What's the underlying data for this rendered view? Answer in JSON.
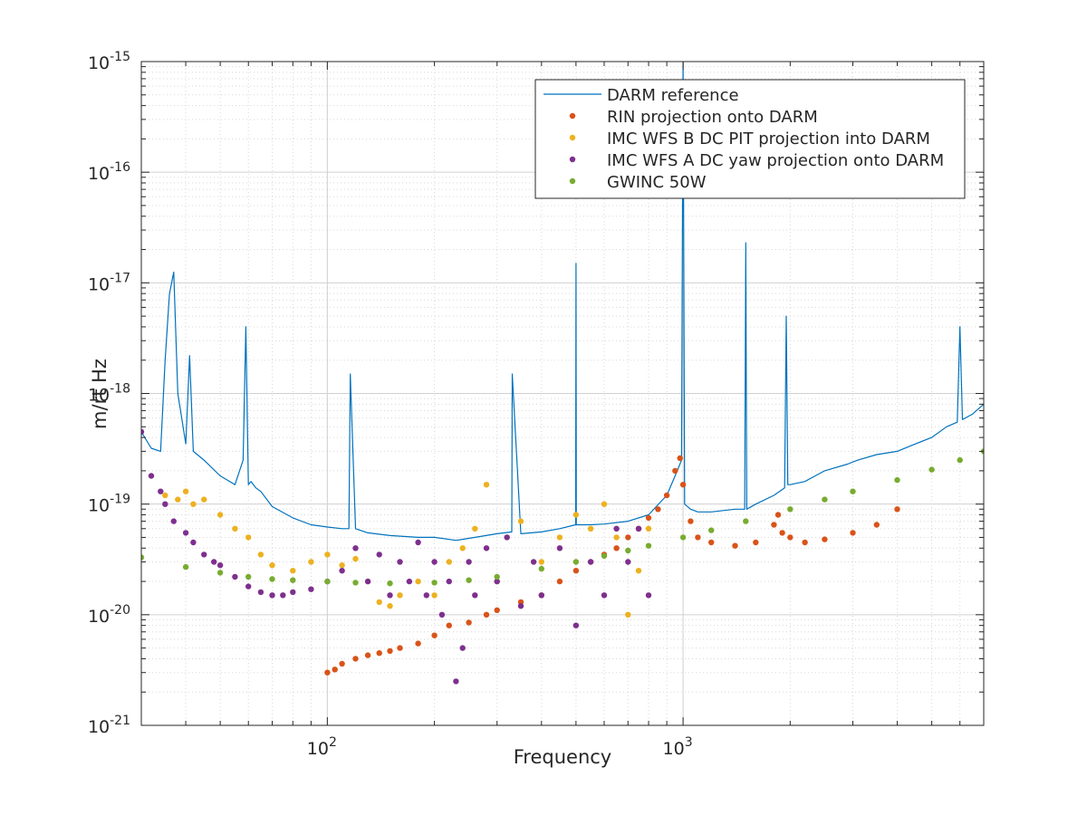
{
  "chart_data": {
    "type": "line",
    "title": "",
    "xlabel": "Frequency",
    "ylabel": "m/rt Hz",
    "xscale": "log",
    "yscale": "log",
    "xlim": [
      30,
      7000
    ],
    "ylim": [
      1e-21,
      1e-15
    ],
    "grid": true,
    "minor_grid": true,
    "legend_position": "top-right",
    "x_ticks": [
      {
        "value": 100,
        "base": "10",
        "exp": "2"
      },
      {
        "value": 1000,
        "base": "10",
        "exp": "3"
      }
    ],
    "y_ticks": [
      {
        "value": 1e-21,
        "base": "10",
        "exp": "-21"
      },
      {
        "value": 1e-20,
        "base": "10",
        "exp": "-20"
      },
      {
        "value": 1e-19,
        "base": "10",
        "exp": "-19"
      },
      {
        "value": 1e-18,
        "base": "10",
        "exp": "-18"
      },
      {
        "value": 1e-17,
        "base": "10",
        "exp": "-17"
      },
      {
        "value": 1e-16,
        "base": "10",
        "exp": "-16"
      },
      {
        "value": 1e-15,
        "base": "10",
        "exp": "-15"
      }
    ],
    "series": [
      {
        "name": "DARM reference",
        "style": "line",
        "color": "#0072bd",
        "x": [
          30,
          32,
          34,
          35,
          36,
          37,
          38,
          40,
          41,
          42,
          45,
          50,
          55,
          58,
          59,
          60,
          61,
          63,
          65,
          70,
          80,
          90,
          100,
          110,
          115,
          116,
          120,
          130,
          150,
          180,
          200,
          230,
          250,
          300,
          330,
          331,
          350,
          400,
          450,
          499,
          500,
          501,
          550,
          600,
          700,
          800,
          900,
          950,
          990,
          1000,
          1010,
          1050,
          1100,
          1200,
          1400,
          1490,
          1500,
          1510,
          1600,
          1800,
          1930,
          1950,
          1970,
          2000,
          2200,
          2500,
          2900,
          3000,
          3100,
          3500,
          4000,
          4500,
          5000,
          5500,
          5900,
          6000,
          6100,
          6500,
          7000
        ],
        "y": [
          4.5e-19,
          3.2e-19,
          3e-19,
          2e-18,
          8e-18,
          1.25e-17,
          1e-18,
          3.5e-19,
          2.2e-18,
          3e-19,
          2.5e-19,
          1.8e-19,
          1.5e-19,
          2.5e-19,
          4e-18,
          1.5e-19,
          1.6e-19,
          1.4e-19,
          1.3e-19,
          9.5e-20,
          7.5e-20,
          6.5e-20,
          6.2e-20,
          6e-20,
          6e-20,
          1.5e-18,
          6e-20,
          5.5e-20,
          5.2e-20,
          5e-20,
          5e-20,
          4.7e-20,
          4.9e-20,
          5.4e-20,
          5.6e-20,
          1.5e-18,
          5.4e-20,
          5.6e-20,
          6e-20,
          6.5e-20,
          1.5e-17,
          6.5e-20,
          6.5e-20,
          6.6e-20,
          7e-20,
          8e-20,
          1.2e-19,
          1.8e-19,
          2.5e-19,
          1e-15,
          1e-19,
          9e-20,
          8.5e-20,
          8.5e-20,
          9e-20,
          9e-20,
          2.3e-17,
          9e-20,
          1e-19,
          1.2e-19,
          1.4e-19,
          5e-18,
          1.5e-19,
          1.5e-19,
          1.6e-19,
          2e-19,
          2.3e-19,
          2.4e-19,
          2.5e-19,
          2.8e-19,
          3e-19,
          3.5e-19,
          4e-19,
          5e-19,
          5.5e-19,
          4e-18,
          5.8e-19,
          6.5e-19,
          8e-19
        ]
      },
      {
        "name": "RIN projection onto DARM",
        "style": "points",
        "color": "#d95319",
        "x": [
          100,
          105,
          110,
          120,
          130,
          140,
          150,
          160,
          180,
          200,
          220,
          250,
          280,
          300,
          350,
          400,
          450,
          500,
          550,
          600,
          650,
          700,
          750,
          800,
          850,
          900,
          950,
          980,
          1000,
          1050,
          1100,
          1200,
          1400,
          1600,
          1800,
          1850,
          1900,
          2000,
          2200,
          2500,
          3000,
          3500,
          4000
        ],
        "y": [
          3e-21,
          3.2e-21,
          3.6e-21,
          4e-21,
          4.3e-21,
          4.5e-21,
          4.7e-21,
          5e-21,
          5.5e-21,
          6.5e-21,
          8e-21,
          8.5e-21,
          1e-20,
          1.1e-20,
          1.3e-20,
          1.5e-20,
          2e-20,
          2.5e-20,
          3e-20,
          3.5e-20,
          4e-20,
          5e-20,
          6e-20,
          7.5e-20,
          9e-20,
          1.2e-19,
          2e-19,
          2.6e-19,
          1.5e-19,
          7e-20,
          5e-20,
          4.5e-20,
          4.2e-20,
          4.5e-20,
          6.5e-20,
          8e-20,
          5.5e-20,
          5e-20,
          4.5e-20,
          4.8e-20,
          5.5e-20,
          6.5e-20,
          9e-20
        ]
      },
      {
        "name": "IMC WFS B DC PIT projection into DARM",
        "style": "points",
        "color": "#edb120",
        "x": [
          35,
          38,
          40,
          42,
          45,
          50,
          55,
          60,
          65,
          70,
          80,
          90,
          100,
          110,
          120,
          130,
          140,
          150,
          160,
          180,
          200,
          220,
          240,
          260,
          280,
          300,
          320,
          350,
          400,
          450,
          500,
          550,
          600,
          650,
          700,
          750,
          800
        ],
        "y": [
          1.2e-19,
          1.1e-19,
          1.3e-19,
          1e-19,
          1.1e-19,
          8e-20,
          6e-20,
          5e-20,
          3.5e-20,
          2.8e-20,
          2.5e-20,
          3e-20,
          3.5e-20,
          2.8e-20,
          3.2e-20,
          2e-20,
          1.3e-20,
          1.2e-20,
          1.5e-20,
          2e-20,
          1.5e-20,
          3e-20,
          4e-20,
          6e-20,
          1.5e-19,
          2e-20,
          5e-20,
          7e-20,
          3e-20,
          5e-20,
          8e-20,
          6e-20,
          1e-19,
          5e-20,
          1e-20,
          2.5e-20,
          6e-20
        ]
      },
      {
        "name": "IMC WFS A DC yaw projection onto DARM",
        "style": "points",
        "color": "#7e2f8e",
        "x": [
          30,
          32,
          34,
          35,
          37,
          40,
          42,
          45,
          48,
          50,
          55,
          60,
          65,
          70,
          75,
          80,
          90,
          100,
          110,
          120,
          130,
          140,
          150,
          160,
          170,
          180,
          190,
          200,
          210,
          220,
          230,
          240,
          250,
          260,
          280,
          300,
          320,
          350,
          380,
          400,
          450,
          500,
          550,
          600,
          650,
          700,
          750,
          800
        ],
        "y": [
          4.5e-19,
          1.8e-19,
          1.3e-19,
          1e-19,
          7e-20,
          5.5e-20,
          4.5e-20,
          3.5e-20,
          3e-20,
          2.8e-20,
          2.2e-20,
          1.8e-20,
          1.6e-20,
          1.5e-20,
          1.5e-20,
          1.6e-20,
          1.7e-20,
          2e-20,
          2.5e-20,
          4e-20,
          2e-20,
          3.5e-20,
          1.5e-20,
          3e-20,
          2e-20,
          4.5e-20,
          1.5e-20,
          3e-20,
          1e-20,
          2e-20,
          2.5e-21,
          5e-21,
          3e-20,
          1.5e-20,
          4e-20,
          2e-20,
          5e-20,
          1.2e-20,
          3e-20,
          1.5e-20,
          4e-20,
          8e-21,
          3e-20,
          1.5e-20,
          6e-20,
          3e-20,
          6e-20,
          1.5e-20
        ]
      },
      {
        "name": "GWINC 50W",
        "style": "points",
        "color": "#77ac30",
        "x": [
          30,
          40,
          50,
          60,
          70,
          80,
          100,
          120,
          150,
          200,
          250,
          300,
          400,
          500,
          600,
          700,
          800,
          1000,
          1200,
          1500,
          2000,
          2500,
          3000,
          4000,
          5000,
          6000,
          7000
        ],
        "y": [
          3.3e-20,
          2.7e-20,
          2.4e-20,
          2.2e-20,
          2.1e-20,
          2.05e-20,
          2e-20,
          1.95e-20,
          1.92e-20,
          1.95e-20,
          2.05e-20,
          2.2e-20,
          2.6e-20,
          3e-20,
          3.4e-20,
          3.8e-20,
          4.2e-20,
          5e-20,
          5.8e-20,
          7e-20,
          9e-20,
          1.1e-19,
          1.3e-19,
          1.65e-19,
          2.05e-19,
          2.5e-19,
          3e-19
        ]
      }
    ]
  }
}
